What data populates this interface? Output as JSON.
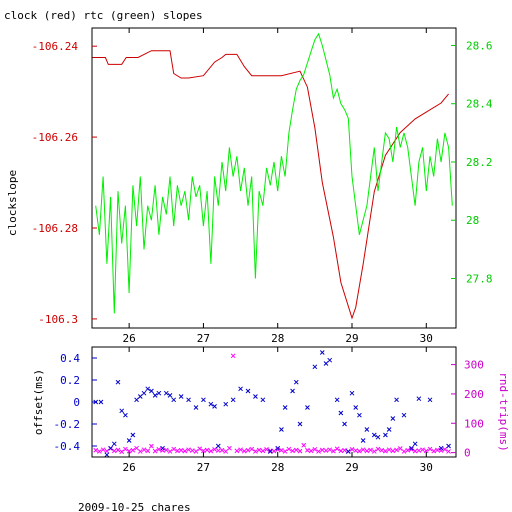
{
  "chart_data": [
    {
      "type": "line",
      "title": "clock (red) rtc (green) slopes",
      "xlabel": "",
      "ylabel": "clockslope",
      "xlim": [
        25.5,
        30.4
      ],
      "x_ticks": [
        "26",
        "27",
        "28",
        "29",
        "30"
      ],
      "ylim_left": [
        -106.302,
        -106.236
      ],
      "y_ticks_left": [
        "-106.24",
        "-106.26",
        "-106.28",
        "-106.3"
      ],
      "ylim_right": [
        27.63,
        28.66
      ],
      "y_ticks_right": [
        "28.6",
        "28.4",
        "28.2",
        "28",
        "27.8"
      ],
      "grid": false,
      "legend": "none",
      "colors": {
        "clock": "#cc0000",
        "rtc": "#00ee00",
        "axis_left": "#cc0000",
        "axis_right": "#00cc00"
      },
      "series": [
        {
          "name": "clock",
          "axis": "left",
          "x": [
            25.5,
            25.68,
            25.72,
            25.9,
            25.96,
            26.12,
            26.3,
            26.55,
            26.6,
            26.7,
            26.8,
            27.0,
            27.15,
            27.25,
            27.3,
            27.45,
            27.55,
            27.65,
            27.72,
            27.85,
            28.05,
            28.3,
            28.4,
            28.5,
            28.6,
            28.75,
            28.85,
            29.0,
            29.05,
            29.15,
            29.3,
            29.45,
            29.65,
            29.85,
            30.0,
            30.2,
            30.3
          ],
          "y": [
            -106.2425,
            -106.2425,
            -106.244,
            -106.244,
            -106.2425,
            -106.2425,
            -106.241,
            -106.241,
            -106.246,
            -106.247,
            -106.247,
            -106.2465,
            -106.2435,
            -106.2425,
            -106.2418,
            -106.2418,
            -106.2445,
            -106.2465,
            -106.2465,
            -106.2465,
            -106.2465,
            -106.2455,
            -106.249,
            -106.258,
            -106.27,
            -106.282,
            -106.292,
            -106.2998,
            -106.2975,
            -106.288,
            -106.272,
            -106.264,
            -106.259,
            -106.256,
            -106.2545,
            -106.2525,
            -106.2505
          ]
        },
        {
          "name": "rtc",
          "axis": "right",
          "x": [
            25.55,
            25.6,
            25.65,
            25.7,
            25.75,
            25.8,
            25.85,
            25.9,
            25.95,
            26.0,
            26.05,
            26.1,
            26.15,
            26.2,
            26.25,
            26.3,
            26.35,
            26.4,
            26.45,
            26.5,
            26.55,
            26.6,
            26.65,
            26.7,
            26.75,
            26.8,
            26.85,
            26.9,
            26.95,
            27.0,
            27.05,
            27.1,
            27.15,
            27.2,
            27.25,
            27.3,
            27.35,
            27.4,
            27.45,
            27.5,
            27.55,
            27.6,
            27.65,
            27.7,
            27.75,
            27.8,
            27.85,
            27.9,
            27.95,
            28.0,
            28.05,
            28.1,
            28.15,
            28.2,
            28.25,
            28.3,
            28.35,
            28.4,
            28.45,
            28.5,
            28.55,
            28.6,
            28.65,
            28.7,
            28.75,
            28.8,
            28.85,
            28.9,
            28.95,
            29.0,
            29.05,
            29.1,
            29.15,
            29.2,
            29.25,
            29.3,
            29.35,
            29.4,
            29.45,
            29.5,
            29.55,
            29.6,
            29.65,
            29.7,
            29.75,
            29.8,
            29.85,
            29.9,
            29.95,
            30.0,
            30.05,
            30.1,
            30.15,
            30.2,
            30.25,
            30.3,
            30.35
          ],
          "y": [
            28.05,
            27.95,
            28.15,
            27.85,
            28.08,
            27.68,
            28.1,
            27.92,
            28.05,
            27.75,
            28.12,
            27.98,
            28.15,
            27.9,
            28.05,
            28.0,
            28.12,
            27.95,
            28.08,
            28.02,
            28.15,
            27.98,
            28.12,
            28.05,
            28.1,
            28.0,
            28.15,
            28.08,
            28.12,
            27.98,
            28.1,
            27.85,
            28.15,
            28.05,
            28.2,
            28.1,
            28.25,
            28.15,
            28.22,
            28.1,
            28.18,
            28.05,
            28.15,
            27.8,
            28.1,
            28.05,
            28.18,
            28.12,
            28.2,
            28.1,
            28.22,
            28.15,
            28.3,
            28.38,
            28.45,
            28.48,
            28.5,
            28.54,
            28.58,
            28.62,
            28.64,
            28.6,
            28.55,
            28.5,
            28.42,
            28.45,
            28.4,
            28.38,
            28.35,
            28.15,
            28.05,
            27.95,
            28.0,
            28.05,
            28.15,
            28.25,
            28.1,
            28.2,
            28.3,
            28.28,
            28.2,
            28.32,
            28.25,
            28.3,
            28.25,
            28.15,
            28.05,
            28.2,
            28.25,
            28.1,
            28.22,
            28.15,
            28.28,
            28.2,
            28.3,
            28.25,
            28.05
          ]
        }
      ]
    },
    {
      "type": "scatter",
      "title": "",
      "xlabel": "2009-10-25 chares",
      "ylabel_left": "offset(ms)",
      "ylabel_right": "rnd-trip(ms)",
      "xlim": [
        25.5,
        30.4
      ],
      "x_ticks": [
        "26",
        "27",
        "28",
        "29",
        "30"
      ],
      "ylim_left": [
        -0.5,
        0.5
      ],
      "y_ticks_left": [
        "0.4",
        "0.2",
        "0",
        "-0.2",
        "-0.4"
      ],
      "ylim_right": [
        -15,
        360
      ],
      "y_ticks_right": [
        "300",
        "200",
        "100",
        "0"
      ],
      "grid": false,
      "legend": "none",
      "colors": {
        "offset": "#0000cc",
        "rndtrip": "#ff00ff",
        "axis_left": "#0000cc",
        "axis_right": "#cc00cc"
      },
      "series": [
        {
          "name": "offset",
          "axis": "left",
          "marker": "x",
          "x": [
            25.55,
            25.62,
            25.7,
            25.75,
            25.8,
            25.85,
            25.9,
            25.95,
            26.0,
            26.05,
            26.1,
            26.15,
            26.2,
            26.25,
            26.3,
            26.35,
            26.4,
            26.45,
            26.5,
            26.55,
            26.6,
            26.7,
            26.8,
            26.9,
            27.0,
            27.1,
            27.15,
            27.2,
            27.3,
            27.4,
            27.5,
            27.6,
            27.7,
            27.8,
            27.9,
            28.0,
            28.05,
            28.1,
            28.2,
            28.25,
            28.3,
            28.4,
            28.5,
            28.6,
            28.65,
            28.7,
            28.8,
            28.85,
            28.9,
            28.95,
            29.0,
            29.05,
            29.1,
            29.15,
            29.2,
            29.3,
            29.35,
            29.45,
            29.5,
            29.55,
            29.6,
            29.7,
            29.8,
            29.85,
            29.9,
            30.05,
            30.2,
            30.3
          ],
          "y": [
            0.0,
            0.0,
            -0.48,
            -0.42,
            -0.38,
            0.18,
            -0.08,
            -0.12,
            -0.35,
            -0.3,
            0.02,
            0.05,
            0.08,
            0.12,
            0.1,
            0.06,
            0.08,
            -0.42,
            0.08,
            0.06,
            0.02,
            0.05,
            0.02,
            -0.05,
            0.02,
            -0.02,
            -0.04,
            -0.4,
            -0.02,
            0.02,
            0.12,
            0.1,
            0.05,
            0.02,
            -0.45,
            -0.42,
            -0.25,
            -0.05,
            0.1,
            0.18,
            -0.2,
            -0.05,
            0.32,
            0.45,
            0.35,
            0.38,
            0.02,
            -0.1,
            -0.2,
            -0.45,
            0.08,
            -0.05,
            -0.12,
            -0.35,
            -0.25,
            -0.3,
            -0.32,
            -0.3,
            -0.25,
            -0.15,
            0.02,
            -0.12,
            -0.42,
            -0.38,
            0.03,
            0.02,
            -0.42,
            -0.4
          ]
        },
        {
          "name": "rnd-trip",
          "axis": "right",
          "marker": "x",
          "x": [
            25.55,
            25.6,
            25.65,
            25.7,
            25.75,
            25.8,
            25.85,
            25.9,
            25.95,
            26.0,
            26.05,
            26.1,
            26.15,
            26.2,
            26.25,
            26.3,
            26.35,
            26.4,
            26.45,
            26.5,
            26.55,
            26.6,
            26.65,
            26.7,
            26.75,
            26.8,
            26.85,
            26.9,
            26.95,
            27.0,
            27.05,
            27.1,
            27.15,
            27.2,
            27.25,
            27.3,
            27.35,
            27.4,
            27.45,
            27.5,
            27.55,
            27.6,
            27.65,
            27.7,
            27.75,
            27.8,
            27.85,
            27.9,
            27.95,
            28.0,
            28.05,
            28.1,
            28.15,
            28.2,
            28.25,
            28.3,
            28.35,
            28.4,
            28.45,
            28.5,
            28.55,
            28.6,
            28.65,
            28.7,
            28.75,
            28.8,
            28.85,
            28.9,
            28.95,
            29.0,
            29.05,
            29.1,
            29.15,
            29.2,
            29.25,
            29.3,
            29.35,
            29.4,
            29.45,
            29.5,
            29.55,
            29.6,
            29.65,
            29.7,
            29.75,
            29.8,
            29.85,
            29.9,
            29.95,
            30.0,
            30.05,
            30.1,
            30.15,
            30.2,
            30.25,
            30.3
          ],
          "y": [
            8,
            4,
            10,
            5,
            14,
            6,
            9,
            3,
            12,
            5,
            8,
            15,
            4,
            10,
            6,
            22,
            5,
            11,
            7,
            9,
            4,
            12,
            6,
            8,
            5,
            10,
            7,
            4,
            13,
            6,
            9,
            5,
            11,
            7,
            8,
            4,
            15,
            330,
            6,
            10,
            5,
            8,
            12,
            4,
            9,
            6,
            11,
            7,
            5,
            10,
            8,
            4,
            12,
            6,
            9,
            5,
            25,
            8,
            6,
            11,
            4,
            9,
            7,
            10,
            5,
            13,
            6,
            8,
            4,
            11,
            7,
            5,
            10,
            6,
            9,
            4,
            12,
            8,
            5,
            10,
            6,
            9,
            14,
            4,
            8,
            11,
            5,
            7,
            10,
            6,
            12,
            5,
            9,
            7,
            11,
            4
          ]
        }
      ]
    }
  ]
}
